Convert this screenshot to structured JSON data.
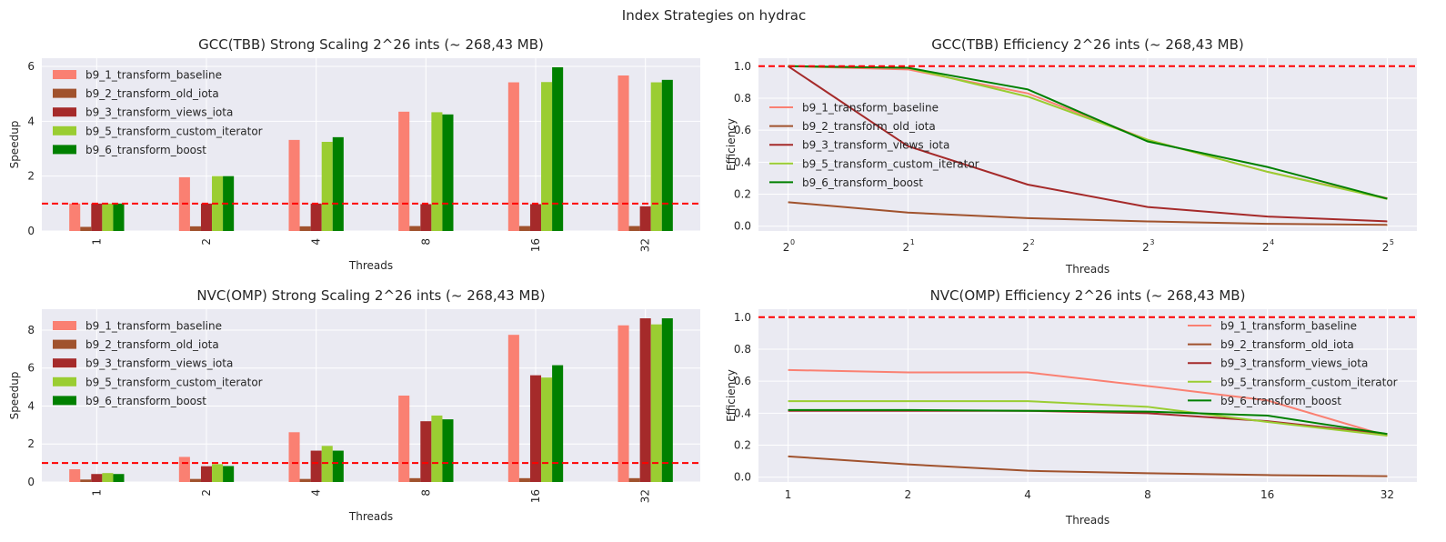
{
  "suptitle": "Index Strategies on hydrac",
  "colors": {
    "b9_1_transform_baseline": "#fa8072",
    "b9_2_transform_old_iota": "#a0522d",
    "b9_3_transform_views_iota": "#a52a2a",
    "b9_5_transform_custom_iterator": "#9acd32",
    "b9_6_transform_boost": "#008000",
    "reference_line": "#ff0000",
    "plot_background": "#eaeaf2",
    "grid": "#ffffff"
  },
  "chart_data": [
    {
      "type": "bar",
      "title": "GCC(TBB) Strong Scaling 2^26 ints (~ 268,43 MB)",
      "xlabel": "Threads",
      "ylabel": "Speedup",
      "categories": [
        "1",
        "2",
        "4",
        "8",
        "16",
        "32"
      ],
      "ylim": [
        0,
        6.3
      ],
      "yticks": [
        0,
        2,
        4,
        6
      ],
      "reference_line": 1,
      "legend_position": "upper-left",
      "grid": true,
      "series": [
        {
          "name": "b9_1_transform_baseline",
          "values": [
            1.0,
            1.96,
            3.32,
            4.35,
            5.42,
            5.67
          ]
        },
        {
          "name": "b9_2_transform_old_iota",
          "values": [
            0.15,
            0.17,
            0.17,
            0.18,
            0.18,
            0.18
          ]
        },
        {
          "name": "b9_3_transform_views_iota",
          "values": [
            1.0,
            1.0,
            1.0,
            0.98,
            0.98,
            0.9
          ]
        },
        {
          "name": "b9_5_transform_custom_iterator",
          "values": [
            1.0,
            2.0,
            3.25,
            4.33,
            5.43,
            5.42
          ]
        },
        {
          "name": "b9_6_transform_boost",
          "values": [
            1.0,
            2.0,
            3.42,
            4.25,
            5.97,
            5.51
          ]
        }
      ]
    },
    {
      "type": "line",
      "title": "GCC(TBB) Efficiency 2^26 ints (~ 268,43 MB)",
      "xlabel": "Threads",
      "ylabel": "Efficiency",
      "x": [
        1,
        2,
        4,
        8,
        16,
        32
      ],
      "xscale": "log2",
      "xtick_labels": [
        {
          "base": "2",
          "exp": "0"
        },
        {
          "base": "2",
          "exp": "1"
        },
        {
          "base": "2",
          "exp": "2"
        },
        {
          "base": "2",
          "exp": "3"
        },
        {
          "base": "2",
          "exp": "4"
        },
        {
          "base": "2",
          "exp": "5"
        }
      ],
      "ylim": [
        -0.03,
        1.05
      ],
      "yticks": [
        0.0,
        0.2,
        0.4,
        0.6,
        0.8,
        1.0
      ],
      "reference_line": 1,
      "legend_position": "center-left",
      "grid": true,
      "series": [
        {
          "name": "b9_1_transform_baseline",
          "values": [
            1.0,
            0.98,
            0.83,
            0.54,
            0.34,
            0.175
          ]
        },
        {
          "name": "b9_2_transform_old_iota",
          "values": [
            0.15,
            0.085,
            0.05,
            0.03,
            0.015,
            0.008
          ]
        },
        {
          "name": "b9_3_transform_views_iota",
          "values": [
            1.0,
            0.5,
            0.26,
            0.12,
            0.06,
            0.03
          ]
        },
        {
          "name": "b9_5_transform_custom_iterator",
          "values": [
            1.0,
            0.99,
            0.81,
            0.54,
            0.34,
            0.17
          ]
        },
        {
          "name": "b9_6_transform_boost",
          "values": [
            1.0,
            0.99,
            0.855,
            0.53,
            0.37,
            0.172
          ]
        }
      ]
    },
    {
      "type": "bar",
      "title": "NVC(OMP) Strong Scaling 2^26 ints (~ 268,43 MB)",
      "xlabel": "Threads",
      "ylabel": "Speedup",
      "categories": [
        "1",
        "2",
        "4",
        "8",
        "16",
        "32"
      ],
      "ylim": [
        0,
        9.1
      ],
      "yticks": [
        0,
        2,
        4,
        6,
        8
      ],
      "reference_line": 1,
      "legend_position": "upper-left",
      "grid": true,
      "series": [
        {
          "name": "b9_1_transform_baseline",
          "values": [
            0.67,
            1.32,
            2.62,
            4.55,
            7.75,
            8.25
          ]
        },
        {
          "name": "b9_2_transform_old_iota",
          "values": [
            0.13,
            0.16,
            0.16,
            0.2,
            0.2,
            0.2
          ]
        },
        {
          "name": "b9_3_transform_views_iota",
          "values": [
            0.42,
            0.83,
            1.65,
            3.2,
            5.62,
            8.62
          ]
        },
        {
          "name": "b9_5_transform_custom_iterator",
          "values": [
            0.47,
            0.94,
            1.9,
            3.5,
            5.5,
            8.3
          ]
        },
        {
          "name": "b9_6_transform_boost",
          "values": [
            0.42,
            0.84,
            1.65,
            3.3,
            6.15,
            8.62
          ]
        }
      ]
    },
    {
      "type": "line",
      "title": "NVC(OMP) Efficiency 2^26 ints (~ 268,43 MB)",
      "xlabel": "Threads",
      "ylabel": "Efficiency",
      "x": [
        1,
        2,
        4,
        8,
        16,
        32
      ],
      "xscale": "log2",
      "xtick_labels": [
        {
          "base": "1",
          "exp": ""
        },
        {
          "base": "2",
          "exp": ""
        },
        {
          "base": "4",
          "exp": ""
        },
        {
          "base": "8",
          "exp": ""
        },
        {
          "base": "16",
          "exp": ""
        },
        {
          "base": "32",
          "exp": ""
        }
      ],
      "ylim": [
        -0.03,
        1.05
      ],
      "yticks": [
        0.0,
        0.2,
        0.4,
        0.6,
        0.8,
        1.0
      ],
      "reference_line": 1,
      "legend_position": "upper-right",
      "grid": true,
      "series": [
        {
          "name": "b9_1_transform_baseline",
          "values": [
            0.67,
            0.655,
            0.655,
            0.57,
            0.48,
            0.258
          ]
        },
        {
          "name": "b9_2_transform_old_iota",
          "values": [
            0.13,
            0.08,
            0.04,
            0.025,
            0.013,
            0.006
          ]
        },
        {
          "name": "b9_3_transform_views_iota",
          "values": [
            0.415,
            0.415,
            0.415,
            0.4,
            0.35,
            0.27
          ]
        },
        {
          "name": "b9_5_transform_custom_iterator",
          "values": [
            0.475,
            0.475,
            0.475,
            0.44,
            0.345,
            0.26
          ]
        },
        {
          "name": "b9_6_transform_boost",
          "values": [
            0.42,
            0.42,
            0.415,
            0.41,
            0.385,
            0.27
          ]
        }
      ]
    }
  ]
}
